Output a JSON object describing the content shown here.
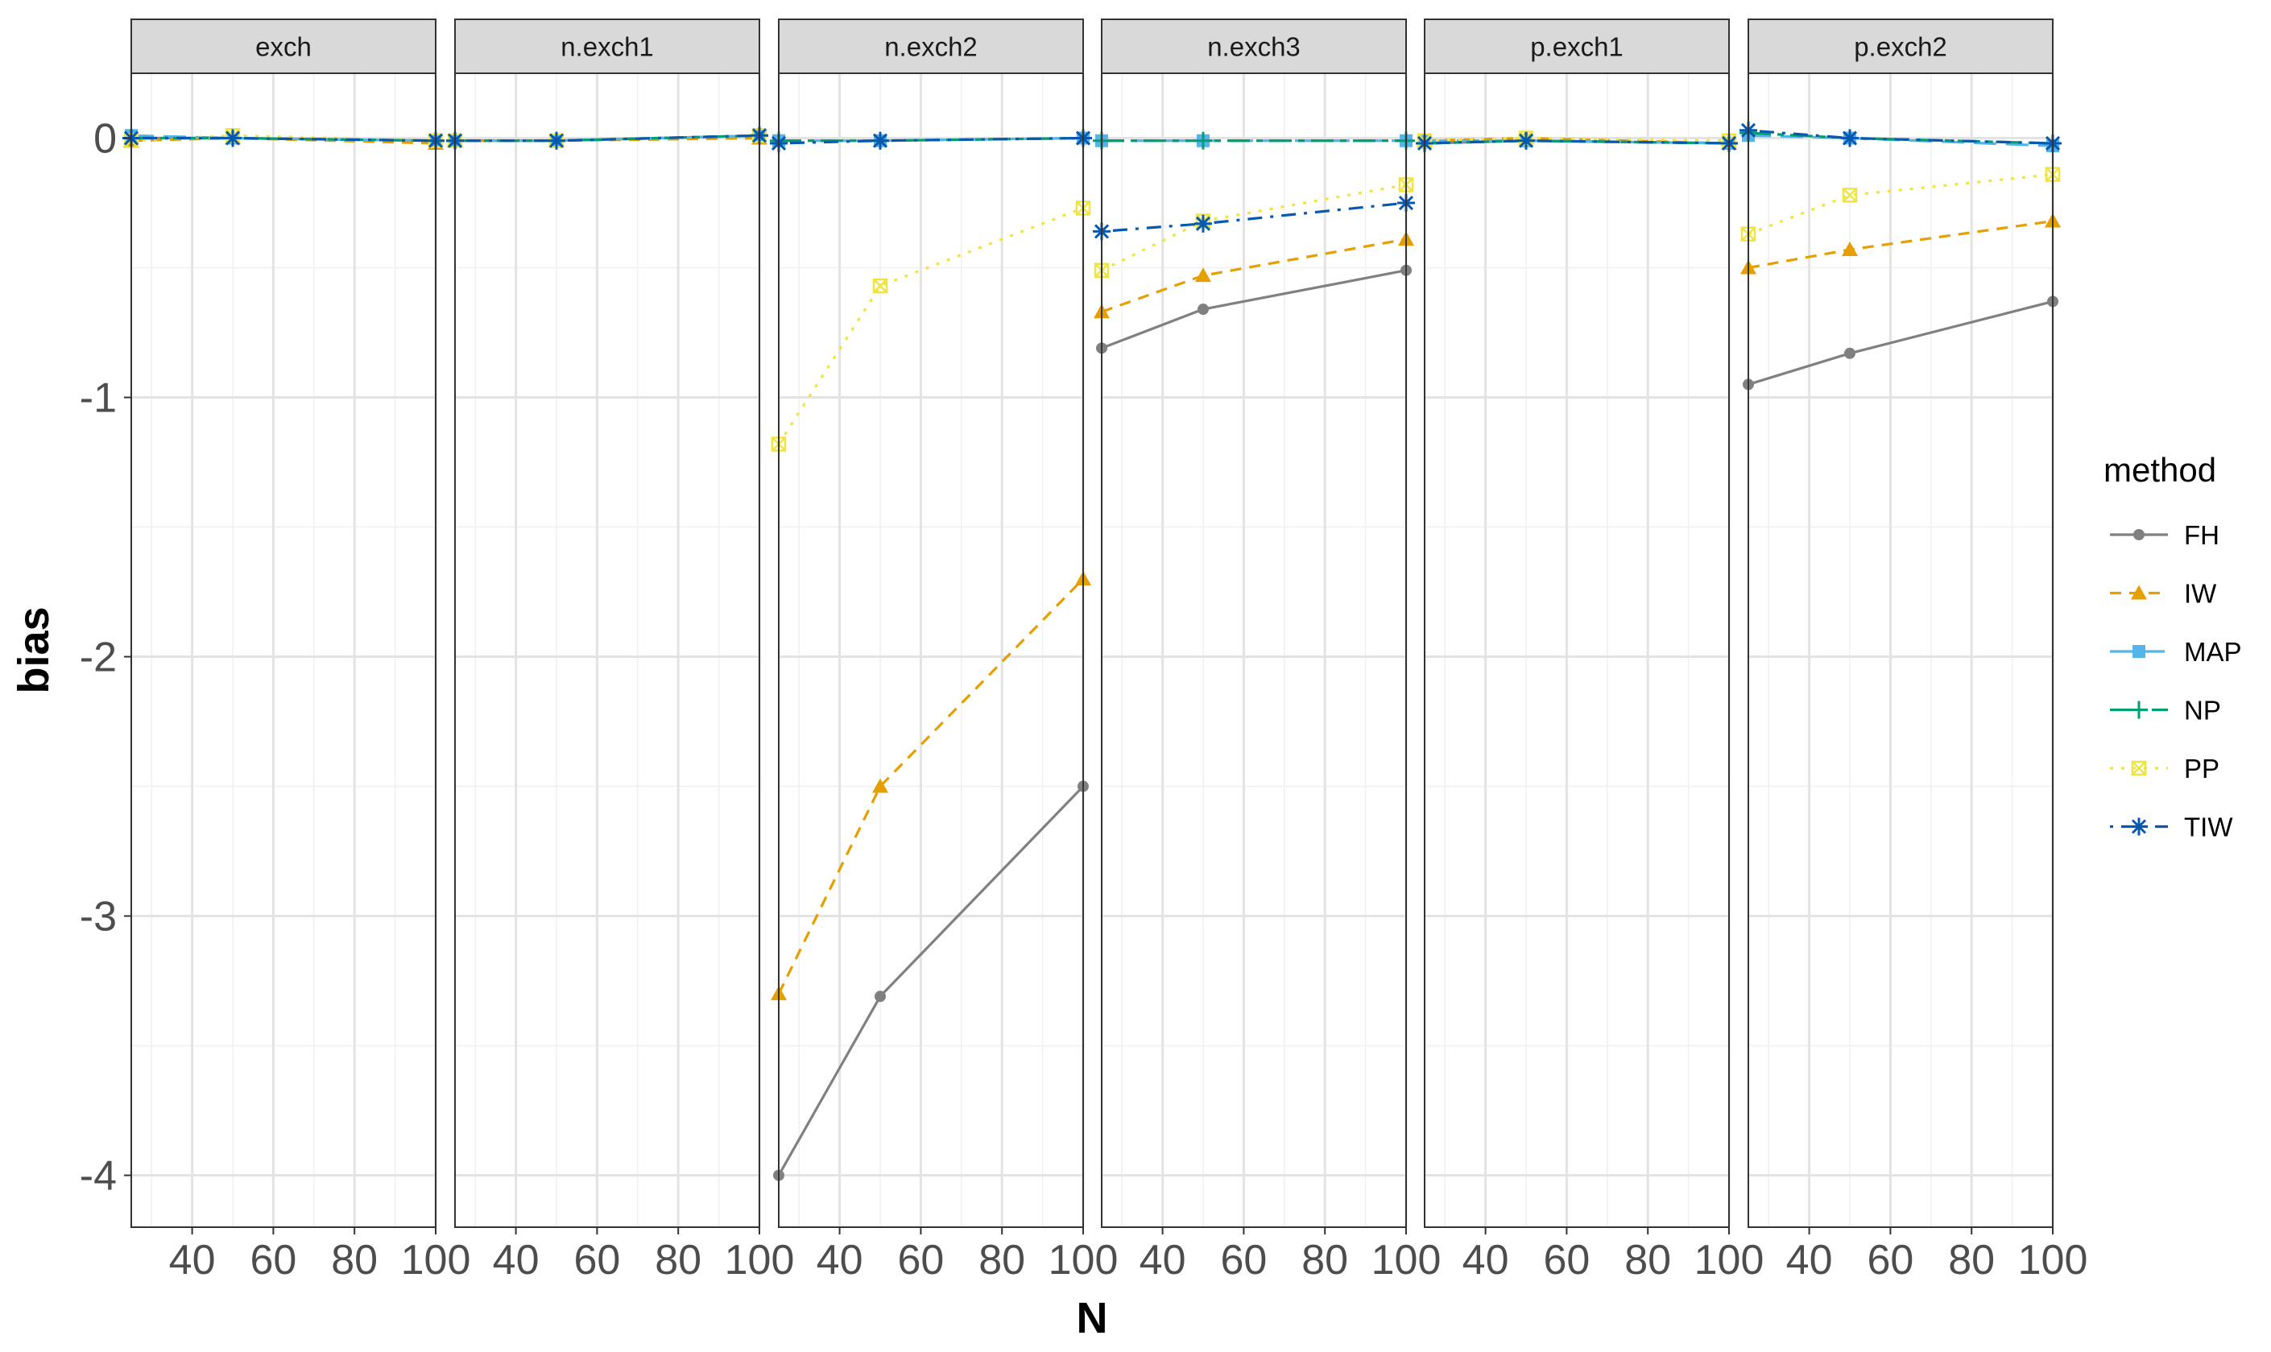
{
  "chart_data": {
    "type": "line",
    "facet_by": "scenario",
    "xlabel": "N",
    "ylabel": "bias",
    "xlim": [
      25,
      100
    ],
    "ylim": [
      -4.2,
      0.25
    ],
    "x_ticks": [
      40,
      60,
      80,
      100
    ],
    "x_tick_labels": [
      "40",
      "60",
      "80",
      "100"
    ],
    "y_ticks": [
      0,
      -1,
      -2,
      -3,
      -4
    ],
    "y_tick_labels": [
      "0",
      "-1",
      "-2",
      "-3",
      "-4"
    ],
    "grid": true,
    "legend_title": "method",
    "legend_position": "right",
    "x": [
      25,
      50,
      100
    ],
    "methods": [
      {
        "name": "FH",
        "color": "#808080",
        "linetype": "solid",
        "shape": "circle"
      },
      {
        "name": "IW",
        "color": "#E69F00",
        "linetype": "dashed",
        "shape": "triangle"
      },
      {
        "name": "MAP",
        "color": "#56B4E9",
        "linetype": "longdash",
        "shape": "square"
      },
      {
        "name": "NP",
        "color": "#009E73",
        "linetype": "twodash",
        "shape": "plus"
      },
      {
        "name": "PP",
        "color": "#F0E442",
        "linetype": "dotted",
        "shape": "square-cross"
      },
      {
        "name": "TIW",
        "color": "#0759B0",
        "linetype": "dotdash",
        "shape": "asterisk"
      }
    ],
    "panels": [
      {
        "title": "exch",
        "series": {
          "FH": [
            0.0,
            0.0,
            -0.01
          ],
          "IW": [
            -0.01,
            0.0,
            -0.02
          ],
          "MAP": [
            0.01,
            0.0,
            -0.01
          ],
          "NP": [
            0.0,
            0.0,
            -0.01
          ],
          "PP": [
            -0.01,
            0.01,
            -0.01
          ],
          "TIW": [
            0.0,
            0.0,
            -0.01
          ]
        }
      },
      {
        "title": "n.exch1",
        "series": {
          "FH": [
            -0.01,
            -0.01,
            0.01
          ],
          "IW": [
            -0.01,
            -0.01,
            0.0
          ],
          "MAP": [
            -0.01,
            -0.01,
            0.01
          ],
          "NP": [
            -0.01,
            -0.01,
            0.01
          ],
          "PP": [
            -0.01,
            -0.01,
            0.01
          ],
          "TIW": [
            -0.01,
            -0.01,
            0.01
          ]
        }
      },
      {
        "title": "n.exch2",
        "series": {
          "FH": [
            -4.0,
            -3.31,
            -2.5
          ],
          "IW": [
            -3.3,
            -2.5,
            -1.7
          ],
          "MAP": [
            -0.01,
            -0.01,
            0.0
          ],
          "NP": [
            -0.01,
            -0.01,
            0.0
          ],
          "PP": [
            -1.18,
            -0.57,
            -0.27
          ],
          "TIW": [
            -0.02,
            -0.01,
            0.0
          ]
        }
      },
      {
        "title": "n.exch3",
        "series": {
          "FH": [
            -0.81,
            -0.66,
            -0.51
          ],
          "IW": [
            -0.67,
            -0.53,
            -0.39
          ],
          "MAP": [
            -0.01,
            -0.01,
            -0.01
          ],
          "NP": [
            -0.01,
            -0.01,
            -0.01
          ],
          "PP": [
            -0.51,
            -0.32,
            -0.18
          ],
          "TIW": [
            -0.36,
            -0.33,
            -0.25
          ]
        }
      },
      {
        "title": "p.exch1",
        "series": {
          "FH": [
            -0.02,
            -0.01,
            -0.02
          ],
          "IW": [
            -0.01,
            0.0,
            -0.02
          ],
          "MAP": [
            -0.01,
            -0.01,
            -0.02
          ],
          "NP": [
            -0.02,
            -0.01,
            -0.02
          ],
          "PP": [
            -0.01,
            0.0,
            -0.01
          ],
          "TIW": [
            -0.02,
            -0.01,
            -0.02
          ]
        }
      },
      {
        "title": "p.exch2",
        "series": {
          "FH": [
            -0.95,
            -0.83,
            -0.63
          ],
          "IW": [
            -0.5,
            -0.43,
            -0.32
          ],
          "MAP": [
            0.01,
            0.0,
            -0.03
          ],
          "NP": [
            0.02,
            0.0,
            -0.02
          ],
          "PP": [
            -0.37,
            -0.22,
            -0.14
          ],
          "TIW": [
            0.03,
            0.0,
            -0.02
          ]
        }
      }
    ]
  }
}
